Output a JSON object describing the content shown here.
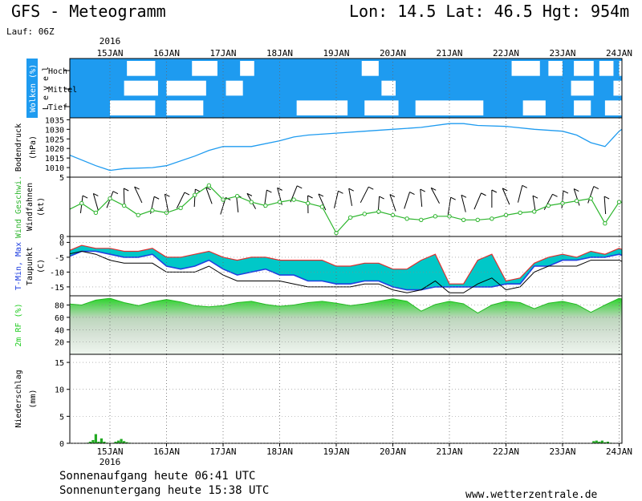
{
  "header": {
    "title": "GFS - Meteogramm",
    "location": "Lon: 14.5 Lat: 46.5 Hgt: 954m",
    "run": "Lauf: 06Z"
  },
  "footer": {
    "sunrise": "Sonnenaufgang heute 06:41 UTC",
    "sunset": "Sonnenuntergang heute 15:38 UTC",
    "credit": "www.wetterzentrale.de"
  },
  "colors": {
    "cloud": "#1e9bf0",
    "pressure": "#1e9bf0",
    "wind": "#2db52d",
    "temp_band": "#00c8c8",
    "temp_max": "#e03030",
    "temp_min": "#2040e0",
    "humidity": "#22cc22",
    "precip": "#22aa22"
  },
  "chart_data": {
    "x_axis": {
      "year": "2016",
      "day_labels": [
        "15JAN",
        "16JAN",
        "17JAN",
        "18JAN",
        "19JAN",
        "20JAN",
        "21JAN",
        "22JAN",
        "23JAN",
        "24JAN"
      ]
    },
    "panels": [
      {
        "id": "clouds",
        "type": "heatmap",
        "ylabel": "Wolken (%)",
        "ylabel2": "Level",
        "levels": [
          "Hoch",
          "Mittel",
          "Tief"
        ],
        "gaps": {
          "Hoch": [
            [
              0.3,
              0.8
            ],
            [
              1.45,
              1.9
            ],
            [
              2.3,
              2.55
            ],
            [
              4.45,
              4.75
            ],
            [
              7.1,
              7.6
            ],
            [
              7.75,
              8.0
            ],
            [
              8.2,
              8.55
            ],
            [
              8.65,
              8.9
            ],
            [
              9.0,
              9.25
            ]
          ],
          "Mittel": [
            [
              0.25,
              0.85
            ],
            [
              1.0,
              1.7
            ],
            [
              2.05,
              2.35
            ],
            [
              4.8,
              5.05
            ],
            [
              8.15,
              8.55
            ],
            [
              8.9,
              9.1
            ]
          ],
          "Tief": [
            [
              0.0,
              0.8
            ],
            [
              1.0,
              1.65
            ],
            [
              3.3,
              4.2
            ],
            [
              4.5,
              5.1
            ],
            [
              5.4,
              6.6
            ],
            [
              7.3,
              7.7
            ],
            [
              8.2,
              8.5
            ],
            [
              8.75,
              9.15
            ]
          ]
        }
      },
      {
        "id": "pressure",
        "type": "line",
        "ylabel": "Bodendruck",
        "unit": "(hPa)",
        "yticks": [
          1010,
          1015,
          1020,
          1025,
          1030,
          1035
        ],
        "ylim": [
          1005,
          1036
        ],
        "x": [
          -0.75,
          -0.25,
          0.0,
          0.25,
          0.75,
          1.0,
          1.5,
          1.75,
          2.0,
          2.5,
          3.0,
          3.25,
          3.5,
          4.0,
          4.5,
          5.0,
          5.5,
          6.0,
          6.25,
          6.5,
          7.0,
          7.5,
          8.0,
          8.25,
          8.5,
          8.75,
          9.0,
          9.2
        ],
        "values": [
          1017,
          1011,
          1008.5,
          1009.5,
          1010,
          1011,
          1016,
          1019,
          1021,
          1021,
          1024,
          1026,
          1027,
          1028,
          1029,
          1030,
          1031,
          1033,
          1033,
          1032,
          1031.5,
          1030,
          1029,
          1027,
          1023,
          1021,
          1029,
          1033
        ]
      },
      {
        "id": "wind",
        "type": "line",
        "ylabel": "Wind Geschwi.",
        "ylabel2": "Windfahnen",
        "unit": "(kt)",
        "yticks": [
          0,
          5
        ],
        "ylim": [
          0,
          5
        ],
        "x": [
          -0.75,
          -0.5,
          -0.25,
          0.0,
          0.25,
          0.5,
          0.75,
          1.0,
          1.25,
          1.5,
          1.75,
          2.0,
          2.25,
          2.5,
          2.75,
          3.0,
          3.25,
          3.5,
          3.75,
          4.0,
          4.25,
          4.5,
          4.75,
          5.0,
          5.25,
          5.5,
          5.75,
          6.0,
          6.25,
          6.5,
          6.75,
          7.0,
          7.25,
          7.5,
          7.75,
          8.0,
          8.25,
          8.5,
          8.75,
          9.0,
          9.25
        ],
        "values": [
          2.2,
          2.8,
          2.0,
          3.2,
          2.6,
          1.8,
          2.2,
          2.0,
          2.4,
          3.5,
          4.3,
          3.1,
          3.4,
          2.9,
          2.6,
          2.9,
          3.1,
          2.8,
          2.5,
          0.3,
          1.6,
          1.9,
          2.1,
          1.8,
          1.5,
          1.4,
          1.7,
          1.7,
          1.4,
          1.4,
          1.5,
          1.8,
          2.0,
          2.1,
          2.6,
          2.8,
          3.0,
          3.2,
          1.1,
          2.9,
          2.8
        ]
      },
      {
        "id": "temperature",
        "type": "area",
        "ylabel": "T-Min, Max",
        "ylabel2": "Taupunkt",
        "unit": "(C)",
        "yticks": [
          0,
          -5,
          -10,
          -15
        ],
        "ylim": [
          -18,
          2
        ],
        "x": [
          -0.75,
          -0.5,
          -0.25,
          0.0,
          0.25,
          0.5,
          0.75,
          1.0,
          1.25,
          1.5,
          1.75,
          2.0,
          2.25,
          2.5,
          2.75,
          3.0,
          3.25,
          3.5,
          3.75,
          4.0,
          4.25,
          4.5,
          4.75,
          5.0,
          5.25,
          5.5,
          5.75,
          6.0,
          6.25,
          6.5,
          6.75,
          7.0,
          7.25,
          7.5,
          7.75,
          8.0,
          8.25,
          8.5,
          8.75,
          9.0,
          9.25
        ],
        "t_max": [
          -3,
          -1,
          -2,
          -2,
          -3,
          -3,
          -2,
          -5,
          -5,
          -4,
          -3,
          -5,
          -6,
          -5,
          -5,
          -6,
          -6,
          -6,
          -6,
          -8,
          -8,
          -7,
          -7,
          -9,
          -9,
          -6,
          -4,
          -14,
          -14,
          -6,
          -4,
          -13,
          -12,
          -7,
          -5,
          -4,
          -5,
          -3,
          -4,
          -2,
          -4
        ],
        "t_min": [
          -5,
          -3,
          -3,
          -4,
          -5,
          -5,
          -4,
          -8,
          -9,
          -8,
          -6,
          -9,
          -11,
          -10,
          -9,
          -11,
          -11,
          -13,
          -13,
          -14,
          -14,
          -13,
          -13,
          -15,
          -16,
          -16,
          -15,
          -15,
          -15,
          -15,
          -15,
          -14,
          -14,
          -8,
          -8,
          -6,
          -6,
          -5,
          -5,
          -4,
          -6
        ],
        "dewpoint": [
          -4,
          -3,
          -4,
          -6,
          -7,
          -7,
          -7,
          -10,
          -10,
          -10,
          -8,
          -11,
          -13,
          -13,
          -13,
          -13,
          -14,
          -15,
          -15,
          -15,
          -15,
          -14,
          -14,
          -16,
          -17,
          -16,
          -13,
          -17,
          -17,
          -14,
          -12,
          -16,
          -15,
          -10,
          -8,
          -8,
          -8,
          -6,
          -6,
          -6,
          -8
        ]
      },
      {
        "id": "humidity",
        "type": "area",
        "ylabel": "2m RF (%)",
        "yticks": [
          20,
          40,
          60,
          80
        ],
        "ylim": [
          0,
          95
        ],
        "x": [
          -0.75,
          -0.5,
          -0.25,
          0.0,
          0.25,
          0.5,
          0.75,
          1.0,
          1.25,
          1.5,
          1.75,
          2.0,
          2.25,
          2.5,
          2.75,
          3.0,
          3.25,
          3.5,
          3.75,
          4.0,
          4.25,
          4.5,
          4.75,
          5.0,
          5.25,
          5.5,
          5.75,
          6.0,
          6.25,
          6.5,
          6.75,
          7.0,
          7.25,
          7.5,
          7.75,
          8.0,
          8.25,
          8.5,
          8.75,
          9.0,
          9.25
        ],
        "values": [
          82,
          80,
          88,
          91,
          84,
          79,
          85,
          89,
          85,
          79,
          77,
          79,
          84,
          86,
          81,
          78,
          80,
          84,
          86,
          83,
          79,
          82,
          86,
          90,
          86,
          70,
          81,
          86,
          82,
          67,
          80,
          86,
          84,
          74,
          83,
          86,
          81,
          68,
          80,
          91,
          85
        ]
      },
      {
        "id": "precip",
        "type": "bar",
        "ylabel": "Niederschlag",
        "unit": "(mm)",
        "yticks": [
          0,
          5,
          10,
          15
        ],
        "ylim": [
          0,
          16.5
        ],
        "x": [
          -0.4,
          -0.35,
          -0.3,
          -0.25,
          -0.2,
          -0.15,
          -0.1,
          -0.05,
          0.1,
          0.15,
          0.2,
          0.25,
          0.3,
          0.35,
          8.55,
          8.6,
          8.65,
          8.7,
          8.75,
          8.8,
          8.85
        ],
        "values": [
          0.1,
          0.3,
          0.6,
          1.7,
          0.3,
          0.9,
          0.3,
          0.1,
          0.3,
          0.5,
          0.8,
          0.4,
          0.2,
          0.1,
          0.4,
          0.5,
          0.3,
          0.5,
          0.2,
          0.3,
          0.1
        ]
      }
    ]
  }
}
